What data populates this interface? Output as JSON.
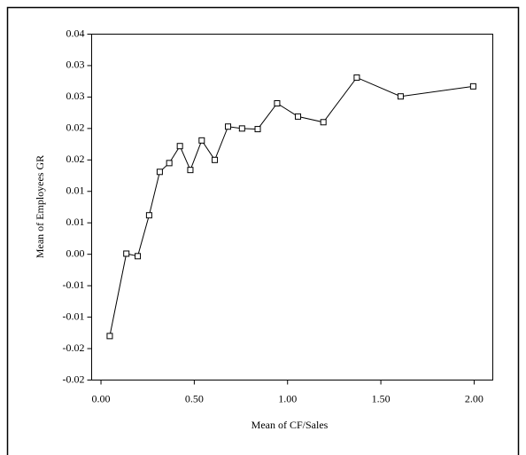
{
  "chart_data": {
    "type": "line",
    "x_label": "Mean of CF/Sales",
    "y_label": "Mean of Employees GR",
    "x": [
      0.047,
      0.136,
      0.197,
      0.258,
      0.315,
      0.366,
      0.423,
      0.479,
      0.54,
      0.61,
      0.681,
      0.756,
      0.84,
      0.944,
      1.056,
      1.192,
      1.371,
      1.606,
      1.995
    ],
    "series": [
      {
        "color": "#000000",
        "values": [
          -0.013,
          0.0001,
          -0.0003,
          0.0062,
          0.0131,
          0.0145,
          0.0172,
          0.0134,
          0.0181,
          0.015,
          0.0203,
          0.02,
          0.0199,
          0.024,
          0.0219,
          0.021,
          0.0281,
          0.0251,
          0.0267
        ]
      }
    ],
    "xlim": [
      -0.05,
      2.1
    ],
    "ylim": [
      -0.02,
      0.035
    ],
    "xticks": [
      {
        "value": 0,
        "label": "0.00"
      },
      {
        "value": 0.5,
        "label": "0.50"
      },
      {
        "value": 1,
        "label": "1.00"
      },
      {
        "value": 1.5,
        "label": "1.50"
      },
      {
        "value": 2,
        "label": "2.00"
      }
    ],
    "yticks": [
      {
        "value": -0.02,
        "label": "-0.02"
      },
      {
        "value": -0.015,
        "label": "-0.02"
      },
      {
        "value": -0.01,
        "label": "-0.01"
      },
      {
        "value": -0.005,
        "label": "-0.01"
      },
      {
        "value": 0,
        "label": "0.00"
      },
      {
        "value": 0.005,
        "label": "0.01"
      },
      {
        "value": 0.01,
        "label": "0.01"
      },
      {
        "value": 0.015,
        "label": "0.02"
      },
      {
        "value": 0.02,
        "label": "0.02"
      },
      {
        "value": 0.025,
        "label": "0.03"
      },
      {
        "value": 0.03,
        "label": "0.03"
      },
      {
        "value": 0.035,
        "label": "0.04"
      }
    ],
    "grid": false
  }
}
